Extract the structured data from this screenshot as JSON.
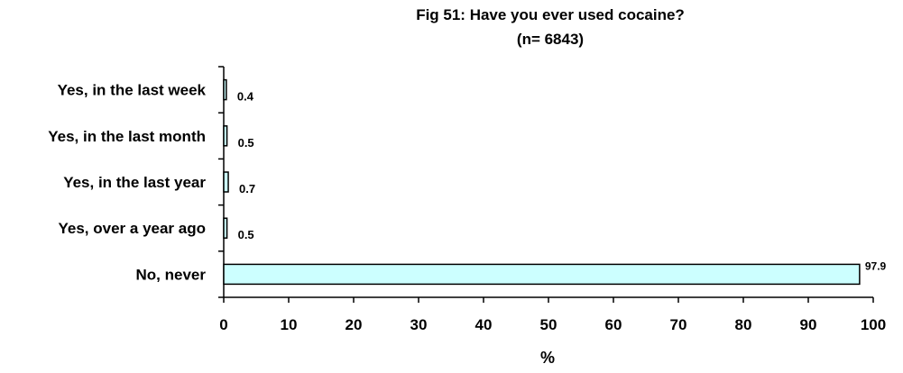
{
  "chart_data": {
    "type": "bar",
    "orientation": "horizontal",
    "title": "Fig 51:   Have you ever used cocaine?",
    "subtitle": "(n= 6843)",
    "xlabel": "%",
    "ylabel": "",
    "categories": [
      "Yes, in the last week",
      "Yes, in the last month",
      "Yes, in the last year",
      "Yes, over a year ago",
      "No, never"
    ],
    "values": [
      0.4,
      0.5,
      0.7,
      0.5,
      97.9
    ],
    "value_labels": [
      "0.4",
      "0.5",
      "0.7",
      "0.5",
      "97.9"
    ],
    "xlim": [
      0,
      100
    ],
    "xticks": [
      "0",
      "10",
      "20",
      "30",
      "40",
      "50",
      "60",
      "70",
      "80",
      "90",
      "100"
    ],
    "grid": false,
    "legend": "none",
    "bar_color": "#ccffff",
    "bar_edge_color": "#000000"
  }
}
